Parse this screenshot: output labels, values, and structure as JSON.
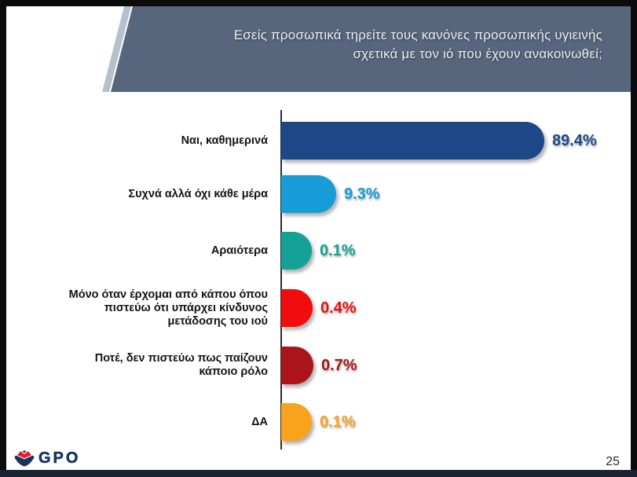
{
  "header": {
    "title_lines": [
      "Εσείς προσωπικά τηρείτε τους κανόνες προσωπικής υγιεινής",
      "σχετικά με τον ιό που έχουν ανακοινωθεί;"
    ]
  },
  "chart_data": {
    "type": "bar",
    "orientation": "horizontal",
    "title": "Εσείς προσωπικά τηρείτε τους κανόνες προσωπικής υγιεινής σχετικά με τον ιό που έχουν ανακοινωθεί;",
    "categories": [
      "Ναι, καθημερινά",
      "Συχνά αλλά όχι κάθε μέρα",
      "Αραιότερα",
      "Μόνο όταν έρχομαι από κάπου όπου\nπιστεύω ότι υπάρχει κίνδυνος\nμετάδοσης του ιού",
      "Ποτέ, δεν πιστεύω πως παίζουν\nκάποιο ρόλο",
      "ΔΑ"
    ],
    "values": [
      89.4,
      9.3,
      0.1,
      0.4,
      0.7,
      0.1
    ],
    "value_labels": [
      "89.4%",
      "9.3%",
      "0.1%",
      "0.4%",
      "0.7%",
      "0.1%"
    ],
    "bar_colors": [
      "#1d4787",
      "#189cd8",
      "#14a297",
      "#f10c0e",
      "#ab1418",
      "#f9a31c"
    ],
    "xlim": [
      0,
      100
    ],
    "grid": false,
    "value_axis_visible": false,
    "legend": "none"
  },
  "colors": {
    "banner_bg": "#57667c",
    "banner_stripe": "#b7c1ce",
    "axis": "#2d2d2d",
    "label_text": "#141414",
    "logo_navy": "#16355f",
    "logo_red": "#e8192c",
    "bottom_strip": "#1b2230"
  },
  "footer": {
    "logo_text": "GPO",
    "page_number": "25"
  }
}
